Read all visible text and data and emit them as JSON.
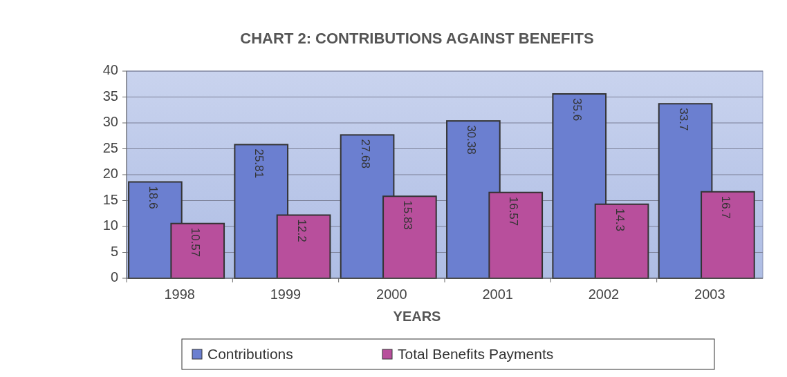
{
  "chart_data": {
    "type": "bar",
    "title": "CHART 2: CONTRIBUTIONS AGAINST BENEFITS",
    "xlabel": "YEARS",
    "categories": [
      "1998",
      "1999",
      "2000",
      "2001",
      "2002",
      "2003"
    ],
    "series": [
      {
        "name": "Contributions",
        "color": "#6b7fd0",
        "values": [
          18.6,
          25.81,
          27.68,
          30.38,
          35.6,
          33.7
        ],
        "value_labels": [
          "18.6",
          "25.81",
          "27.68",
          "30.38",
          "35.6",
          "33.7"
        ]
      },
      {
        "name": "Total Benefits Payments",
        "color": "#b84f9c",
        "values": [
          10.57,
          12.2,
          15.83,
          16.57,
          14.3,
          16.7
        ],
        "value_labels": [
          "10.57",
          "12.2",
          "15.83",
          "16.57",
          "14.3",
          "16.7"
        ]
      }
    ],
    "ylim": [
      0,
      40
    ],
    "yticks": [
      0,
      5,
      10,
      15,
      20,
      25,
      30,
      35,
      40
    ],
    "grid": "y",
    "legend": "bottom"
  }
}
